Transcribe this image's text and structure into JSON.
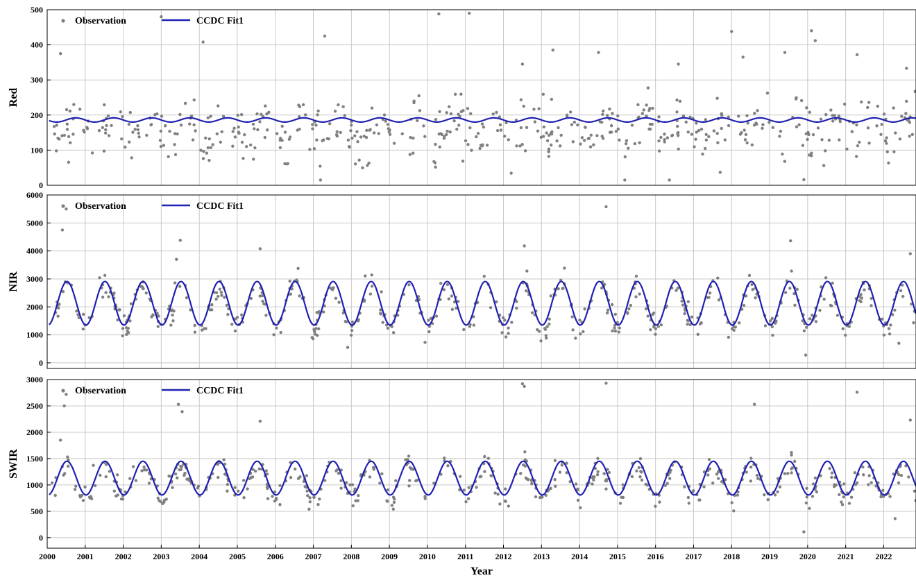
{
  "chart_data": [
    {
      "type": "scatter+line",
      "ylabel": "Red",
      "xlabel": "",
      "xlim": [
        2000,
        2022.85
      ],
      "ylim": [
        0,
        500
      ],
      "yticks": [
        0,
        100,
        200,
        300,
        400,
        500
      ],
      "xticks": [
        2000,
        2001,
        2002,
        2003,
        2004,
        2005,
        2006,
        2007,
        2008,
        2009,
        2010,
        2011,
        2012,
        2013,
        2014,
        2015,
        2016,
        2017,
        2018,
        2019,
        2020,
        2021,
        2022
      ],
      "grid": true,
      "legend_placement": "top-left",
      "series": [
        {
          "name": "Observation",
          "kind": "scatter",
          "color": "#808080",
          "points_per_year": 22,
          "base": 160,
          "amplitude": 30,
          "spread": 70,
          "outliers": [
            [
              2000.35,
              375
            ],
            [
              2000.7,
              230
            ],
            [
              2003.0,
              480
            ],
            [
              2004.1,
              408
            ],
            [
              2007.3,
              425
            ],
            [
              2010.3,
              488
            ],
            [
              2011.1,
              490
            ],
            [
              2012.5,
              345
            ],
            [
              2013.3,
              385
            ],
            [
              2014.5,
              378
            ],
            [
              2016.6,
              345
            ],
            [
              2017.7,
              37
            ],
            [
              2018.0,
              438
            ],
            [
              2018.3,
              365
            ],
            [
              2019.4,
              378
            ],
            [
              2019.9,
              16
            ],
            [
              2020.1,
              440
            ],
            [
              2020.2,
              412
            ],
            [
              2021.3,
              372
            ],
            [
              2022.6,
              333
            ]
          ]
        },
        {
          "name": "CCDC Fit1",
          "kind": "line",
          "color": "#1f1fb4",
          "base": 186,
          "amplitude": 6,
          "phase": 0.5
        }
      ]
    },
    {
      "type": "scatter+line",
      "ylabel": "NIR",
      "xlabel": "",
      "xlim": [
        2000,
        2022.85
      ],
      "ylim": [
        -200,
        6000
      ],
      "yticks": [
        0,
        1000,
        2000,
        3000,
        4000,
        5000,
        6000
      ],
      "xticks": [
        2000,
        2001,
        2002,
        2003,
        2004,
        2005,
        2006,
        2007,
        2008,
        2009,
        2010,
        2011,
        2012,
        2013,
        2014,
        2015,
        2016,
        2017,
        2018,
        2019,
        2020,
        2021,
        2022
      ],
      "grid": true,
      "legend_placement": "top-left",
      "series": [
        {
          "name": "Observation",
          "kind": "scatter",
          "color": "#808080",
          "points_per_year": 22,
          "base": 2000,
          "amplitude": 750,
          "spread": 420,
          "outliers": [
            [
              2000.4,
              4750
            ],
            [
              2000.5,
              5500
            ],
            [
              2003.4,
              3700
            ],
            [
              2003.5,
              4380
            ],
            [
              2005.6,
              4080
            ],
            [
              2012.55,
              4180
            ],
            [
              2014.7,
              5580
            ],
            [
              2019.55,
              4360
            ],
            [
              2019.95,
              280
            ],
            [
              2022.7,
              3900
            ],
            [
              2022.4,
              700
            ]
          ]
        },
        {
          "name": "CCDC Fit1",
          "kind": "line",
          "color": "#1f1fb4",
          "base": 2130,
          "amplitude": 780,
          "phase": 0.27
        }
      ]
    },
    {
      "type": "scatter+line",
      "ylabel": "SWIR",
      "xlabel": "Year",
      "xlim": [
        2000,
        2022.85
      ],
      "ylim": [
        -200,
        3000
      ],
      "yticks": [
        0,
        500,
        1000,
        1500,
        2000,
        2500,
        3000
      ],
      "xticks": [
        2000,
        2001,
        2002,
        2003,
        2004,
        2005,
        2006,
        2007,
        2008,
        2009,
        2010,
        2011,
        2012,
        2013,
        2014,
        2015,
        2016,
        2017,
        2018,
        2019,
        2020,
        2021,
        2022
      ],
      "grid": true,
      "legend_placement": "top-left",
      "series": [
        {
          "name": "Observation",
          "kind": "scatter",
          "color": "#808080",
          "points_per_year": 22,
          "base": 1060,
          "amplitude": 300,
          "spread": 220,
          "outliers": [
            [
              2000.35,
              1850
            ],
            [
              2000.45,
              2500
            ],
            [
              2000.5,
              2720
            ],
            [
              2003.45,
              2530
            ],
            [
              2003.55,
              2390
            ],
            [
              2005.6,
              2210
            ],
            [
              2012.5,
              2920
            ],
            [
              2012.55,
              2870
            ],
            [
              2014.7,
              2930
            ],
            [
              2018.6,
              2530
            ],
            [
              2019.9,
              110
            ],
            [
              2021.3,
              2760
            ],
            [
              2022.3,
              360
            ],
            [
              2022.7,
              2230
            ]
          ]
        },
        {
          "name": "CCDC Fit1",
          "kind": "line",
          "color": "#1f1fb4",
          "base": 1130,
          "amplitude": 320,
          "phase": 0.27
        }
      ]
    }
  ],
  "legend": {
    "observation_label": "Observation",
    "fit_label": "CCDC Fit1"
  },
  "x_axis_title": "Year",
  "colors": {
    "observation": "#808080",
    "fit": "#1f1fb4",
    "grid": "#c8c8c8"
  }
}
